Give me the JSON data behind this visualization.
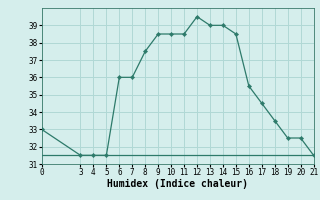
{
  "x": [
    0,
    3,
    4,
    5,
    6,
    7,
    8,
    9,
    10,
    11,
    12,
    13,
    14,
    15,
    16,
    17,
    18,
    19,
    20,
    21
  ],
  "y": [
    33,
    31.5,
    31.5,
    31.5,
    36,
    36,
    37.5,
    38.5,
    38.5,
    38.5,
    39.5,
    39,
    39,
    38.5,
    35.5,
    34.5,
    33.5,
    32.5,
    32.5,
    31.5
  ],
  "y_flat": [
    31.5,
    31.5,
    31.5,
    31.5,
    31.5,
    31.5,
    31.5,
    31.5,
    31.5,
    31.5,
    31.5,
    31.5,
    31.5,
    31.5,
    31.5,
    31.5,
    31.5,
    31.5,
    31.5,
    31.5
  ],
  "xlabel": "Humidex (Indice chaleur)",
  "xlim": [
    0,
    21
  ],
  "ylim": [
    31,
    40
  ],
  "yticks": [
    31,
    32,
    33,
    34,
    35,
    36,
    37,
    38,
    39
  ],
  "xticks": [
    0,
    3,
    4,
    5,
    6,
    7,
    8,
    9,
    10,
    11,
    12,
    13,
    14,
    15,
    16,
    17,
    18,
    19,
    20,
    21
  ],
  "line_color": "#2d7a6a",
  "bg_color": "#d5eeec",
  "grid_color": "#b0d8d5",
  "fig_bg": "#d5eeec",
  "tick_label_size": 5.5,
  "xlabel_size": 7
}
